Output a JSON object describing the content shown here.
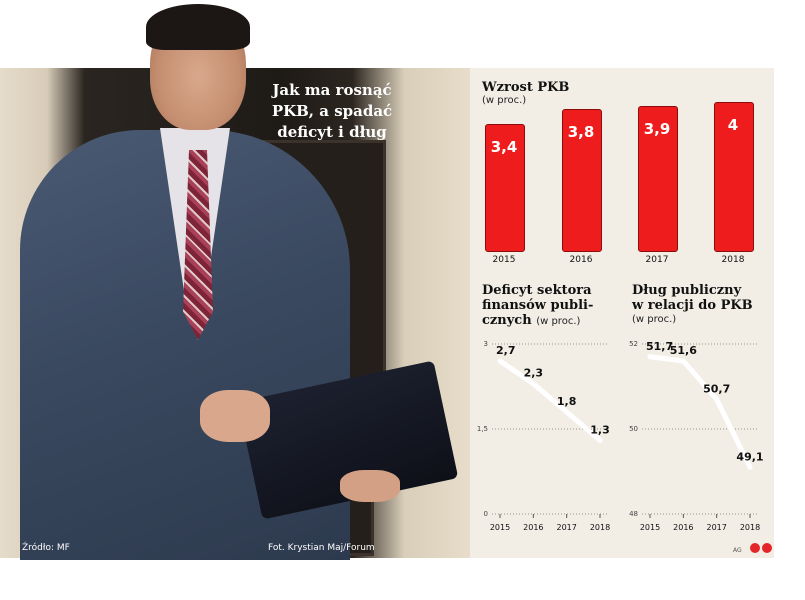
{
  "headline": "Jak ma rosnąć\nPKB, a spadać\ndeficyt i dług",
  "source": "Źródło: MF",
  "photo_credit": "Fot. Krystian Maj/Forum",
  "agency": "AG",
  "colors": {
    "bar": "#ee1c1c",
    "line": "#ffffff",
    "panel": "#f2eee6"
  },
  "gdp": {
    "title": "Wzrost PKB",
    "unit": "(w proc.)"
  },
  "deficit": {
    "title": "Deficyt sektora\nfinansów publi-\ncznych",
    "unit": "(w proc.)"
  },
  "debt": {
    "title": "Dług publiczny\nw relacji do PKB",
    "unit": "(w proc.)"
  },
  "chart_data": [
    {
      "type": "bar",
      "title": "Wzrost PKB",
      "subtitle": "(w proc.)",
      "categories": [
        "2015",
        "2016",
        "2017",
        "2018"
      ],
      "values": [
        3.4,
        3.8,
        3.9,
        4.0
      ],
      "data_labels": [
        "3,4",
        "3,8",
        "3,9",
        "4"
      ]
    },
    {
      "type": "line",
      "title": "Deficyt sektora finansów publicznych",
      "subtitle": "(w proc.)",
      "x": [
        "2015",
        "2016",
        "2017",
        "2018"
      ],
      "y": [
        2.7,
        2.3,
        1.8,
        1.3
      ],
      "data_labels": [
        "2,7",
        "2,3",
        "1,8",
        "1,3"
      ],
      "yticks": [
        "3",
        "1,5",
        "0"
      ],
      "ylim": [
        0,
        3
      ]
    },
    {
      "type": "line",
      "title": "Dług publiczny w relacji do PKB",
      "subtitle": "(w proc.)",
      "x": [
        "2015",
        "2016",
        "2017",
        "2018"
      ],
      "y": [
        51.7,
        51.6,
        50.7,
        49.1
      ],
      "data_labels": [
        "51,7",
        "51,6",
        "50,7",
        "49,1"
      ],
      "yticks": [
        "52",
        "50",
        "48"
      ],
      "ylim": [
        48,
        52
      ]
    }
  ]
}
